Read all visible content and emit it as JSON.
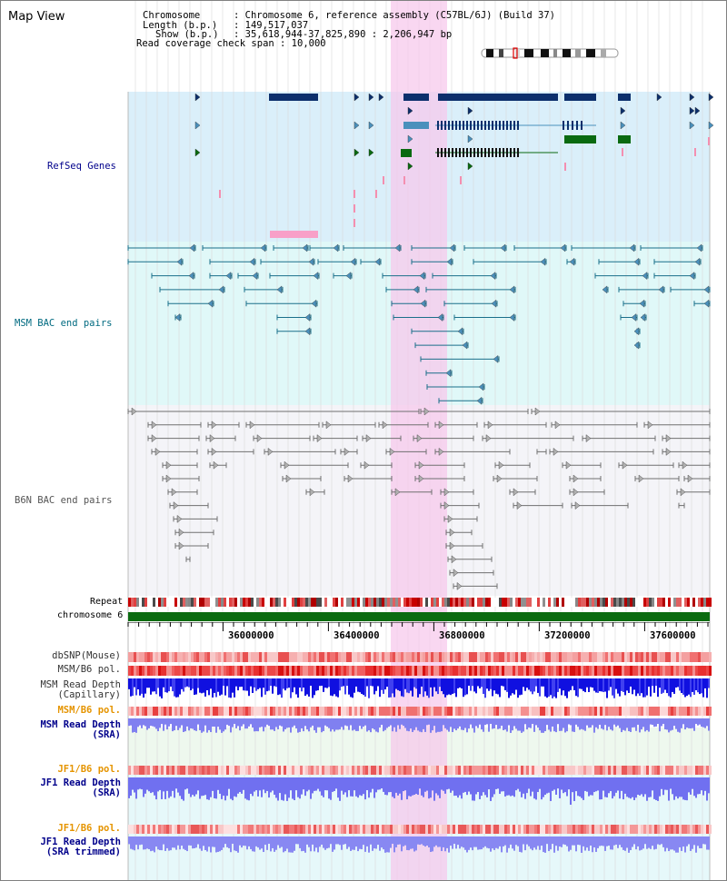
{
  "panel": {
    "title": "Map View"
  },
  "info": {
    "chromosome_label": "Chromosome",
    "chromosome_value": ": Chromosome 6, reference assembly (C57BL/6J) (Build 37)",
    "length_label": "Length (b.p.)",
    "length_value": ": 149,517,037",
    "show_label": "Show (b.p.)",
    "show_value": ": 35,618,944-37,825,890 : 2,206,947 bp",
    "read_coverage": "Read coverage check span : 10,000"
  },
  "tracks": {
    "refseq": "RefSeq Genes",
    "msm_bac": "MSM BAC end pairs",
    "b6n_bac": "B6N BAC end pairs",
    "repeat": "Repeat",
    "chromosome": "chromosome 6",
    "dbsnp": "dbSNP(Mouse)",
    "msm_b6_pol_1": "MSM/B6 pol.",
    "msm_read_depth_cap_1": "MSM Read Depth",
    "msm_read_depth_cap_2": "(Capillary)",
    "msm_b6_pol_2": "MSM/B6 pol.",
    "msm_read_depth_sra_1": "MSM Read Depth",
    "msm_read_depth_sra_2": "(SRA)",
    "jf1_b6_pol_1": "JF1/B6 pol.",
    "jf1_read_depth_sra_1": "JF1 Read Depth",
    "jf1_read_depth_sra_2": "(SRA)",
    "jf1_b6_pol_2": "JF1/B6 pol.",
    "jf1_read_depth_trim_1": "JF1 Read Depth",
    "jf1_read_depth_trim_2": "(SRA trimmed)"
  },
  "axis": {
    "ticks": [
      "36000000",
      "36400000",
      "36800000",
      "37200000",
      "37600000"
    ]
  },
  "colors": {
    "refseq_bg": "#daeffa",
    "msm_bg": "#e0f8f8",
    "b6n_bg": "#f4f4f8",
    "highlight": "#f8d8f0",
    "gene_dark": "#0c2f6c",
    "gene_mid": "#4a90bc",
    "gene_green": "#0a6a10",
    "msm_pair": "#1a6f8a",
    "b6n_pair": "#707070",
    "chromosome_bar": "#0b6b10",
    "label_navy": "#00008b",
    "label_orange": "#e59400",
    "label_teal": "#006a80"
  },
  "icons": [
    "chromosome-ideogram-icon"
  ]
}
